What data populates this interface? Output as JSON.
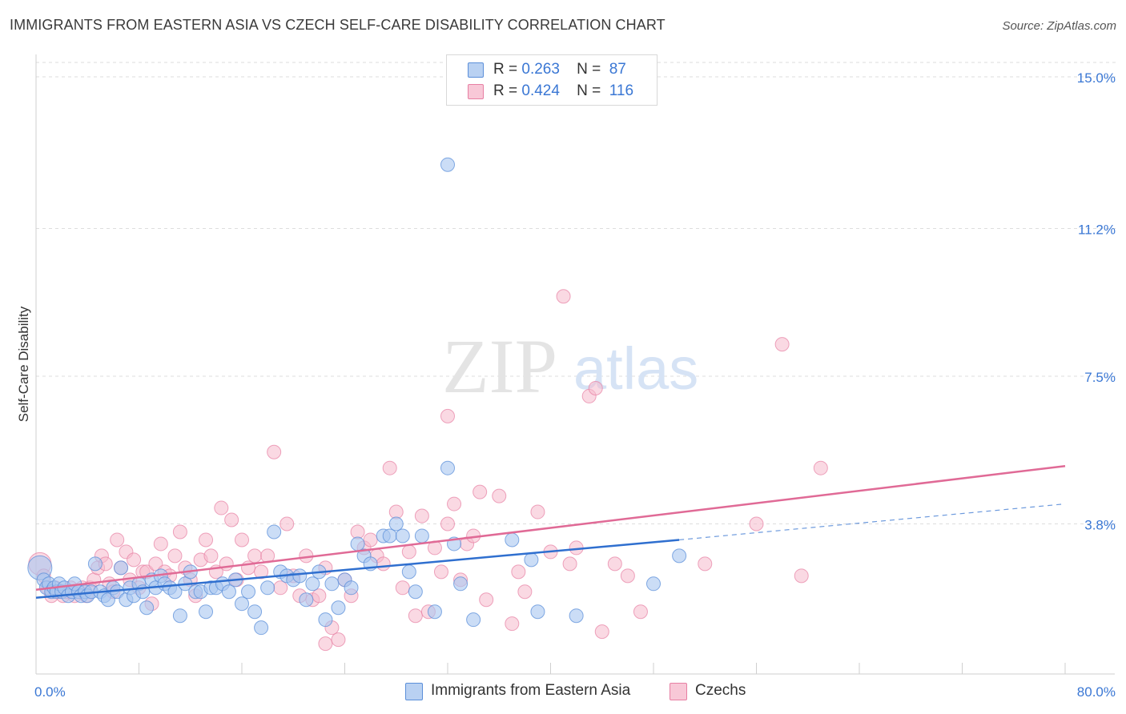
{
  "header": {
    "title": "IMMIGRANTS FROM EASTERN ASIA VS CZECH SELF-CARE DISABILITY CORRELATION CHART",
    "source": "Source: ZipAtlas.com"
  },
  "watermark": {
    "zip": "ZIP",
    "atlas": "atlas"
  },
  "legend": {
    "rows": [
      {
        "r_label": "R =",
        "r_value": "0.263",
        "n_label": "N =",
        "n_value": "87"
      },
      {
        "r_label": "R =",
        "r_value": "0.424",
        "n_label": "N =",
        "n_value": "116"
      }
    ]
  },
  "bottom_legend": {
    "series1": "Immigrants from Eastern Asia",
    "series2": "Czechs"
  },
  "colors": {
    "blue_fill": "#a9c6f0",
    "blue_stroke": "#5b8fd9",
    "blue_line": "#2f6fcf",
    "pink_fill": "#f5b9cc",
    "pink_stroke": "#e77fa3",
    "pink_line": "#e06a96",
    "axis_text": "#3a77d4",
    "grid": "#dddddd"
  },
  "chart_data": {
    "type": "scatter",
    "ylabel": "Self-Care Disability",
    "xlim": [
      0,
      80
    ],
    "ylim": [
      0,
      15
    ],
    "x_tick_labels": [
      "0.0%",
      "80.0%"
    ],
    "y_ticks": [
      3.8,
      7.5,
      11.2,
      15.0
    ],
    "y_tick_labels": [
      "3.8%",
      "7.5%",
      "11.2%",
      "15.0%"
    ],
    "grid": true,
    "series": [
      {
        "name": "Immigrants from Eastern Asia",
        "color": "#a9c6f0",
        "trend": {
          "x": [
            0,
            50
          ],
          "y": [
            1.95,
            3.4
          ],
          "dashed_to": [
            80,
            4.3
          ]
        },
        "points": [
          [
            0.3,
            2.7
          ],
          [
            0.6,
            2.4
          ],
          [
            0.8,
            2.2
          ],
          [
            1.0,
            2.3
          ],
          [
            1.2,
            2.1
          ],
          [
            1.4,
            2.2
          ],
          [
            1.6,
            2.1
          ],
          [
            1.8,
            2.3
          ],
          [
            2.0,
            2.1
          ],
          [
            2.2,
            2.2
          ],
          [
            2.5,
            2.0
          ],
          [
            2.8,
            2.1
          ],
          [
            3.0,
            2.3
          ],
          [
            3.3,
            2.1
          ],
          [
            3.5,
            2.0
          ],
          [
            3.8,
            2.1
          ],
          [
            4.0,
            2.0
          ],
          [
            4.3,
            2.1
          ],
          [
            4.6,
            2.8
          ],
          [
            5.0,
            2.1
          ],
          [
            5.3,
            2.0
          ],
          [
            5.6,
            1.9
          ],
          [
            6.0,
            2.2
          ],
          [
            6.3,
            2.1
          ],
          [
            6.6,
            2.7
          ],
          [
            7.0,
            1.9
          ],
          [
            7.3,
            2.2
          ],
          [
            7.6,
            2.0
          ],
          [
            8.0,
            2.3
          ],
          [
            8.3,
            2.1
          ],
          [
            8.6,
            1.7
          ],
          [
            9.0,
            2.4
          ],
          [
            9.3,
            2.2
          ],
          [
            9.7,
            2.5
          ],
          [
            10.0,
            2.3
          ],
          [
            10.4,
            2.2
          ],
          [
            10.8,
            2.1
          ],
          [
            11.2,
            1.5
          ],
          [
            11.6,
            2.3
          ],
          [
            12.0,
            2.6
          ],
          [
            12.4,
            2.1
          ],
          [
            12.8,
            2.1
          ],
          [
            13.2,
            1.6
          ],
          [
            13.6,
            2.2
          ],
          [
            14.0,
            2.2
          ],
          [
            14.5,
            2.3
          ],
          [
            15.0,
            2.1
          ],
          [
            15.5,
            2.4
          ],
          [
            16.0,
            1.8
          ],
          [
            16.5,
            2.1
          ],
          [
            17.0,
            1.6
          ],
          [
            17.5,
            1.2
          ],
          [
            18.0,
            2.2
          ],
          [
            18.5,
            3.6
          ],
          [
            19.0,
            2.6
          ],
          [
            19.5,
            2.5
          ],
          [
            20.0,
            2.4
          ],
          [
            20.5,
            2.5
          ],
          [
            21.0,
            1.9
          ],
          [
            21.5,
            2.3
          ],
          [
            22.0,
            2.6
          ],
          [
            22.5,
            1.4
          ],
          [
            23.0,
            2.3
          ],
          [
            23.5,
            1.7
          ],
          [
            24.0,
            2.4
          ],
          [
            24.5,
            2.2
          ],
          [
            25.0,
            3.3
          ],
          [
            25.5,
            3.0
          ],
          [
            26.0,
            2.8
          ],
          [
            27.0,
            3.5
          ],
          [
            27.5,
            3.5
          ],
          [
            28.0,
            3.8
          ],
          [
            28.5,
            3.5
          ],
          [
            29.0,
            2.6
          ],
          [
            29.5,
            2.1
          ],
          [
            30.0,
            3.5
          ],
          [
            31.0,
            1.6
          ],
          [
            32.0,
            12.8
          ],
          [
            32.0,
            5.2
          ],
          [
            32.5,
            3.3
          ],
          [
            33.0,
            2.3
          ],
          [
            34.0,
            1.4
          ],
          [
            37.0,
            3.4
          ],
          [
            38.5,
            2.9
          ],
          [
            39.0,
            1.6
          ],
          [
            42.0,
            1.5
          ],
          [
            48.0,
            2.3
          ],
          [
            50.0,
            3.0
          ]
        ]
      },
      {
        "name": "Czechs",
        "color": "#f5b9cc",
        "trend": {
          "x": [
            0,
            80
          ],
          "y": [
            2.15,
            5.25
          ]
        },
        "points": [
          [
            0.3,
            2.8
          ],
          [
            0.6,
            2.5
          ],
          [
            0.9,
            2.2
          ],
          [
            1.2,
            2.0
          ],
          [
            1.5,
            2.2
          ],
          [
            1.8,
            2.1
          ],
          [
            2.1,
            2.0
          ],
          [
            2.4,
            2.1
          ],
          [
            2.7,
            2.2
          ],
          [
            3.0,
            2.0
          ],
          [
            3.3,
            2.1
          ],
          [
            3.6,
            2.2
          ],
          [
            3.9,
            2.0
          ],
          [
            4.2,
            2.2
          ],
          [
            4.5,
            2.4
          ],
          [
            4.8,
            2.7
          ],
          [
            5.1,
            3.0
          ],
          [
            5.4,
            2.8
          ],
          [
            5.7,
            2.3
          ],
          [
            6.0,
            2.1
          ],
          [
            6.3,
            3.4
          ],
          [
            6.6,
            2.7
          ],
          [
            7.0,
            3.1
          ],
          [
            7.3,
            2.4
          ],
          [
            7.6,
            2.9
          ],
          [
            8.0,
            2.2
          ],
          [
            8.3,
            2.6
          ],
          [
            8.6,
            2.6
          ],
          [
            9.0,
            1.8
          ],
          [
            9.3,
            2.8
          ],
          [
            9.7,
            3.3
          ],
          [
            10.0,
            2.6
          ],
          [
            10.4,
            2.5
          ],
          [
            10.8,
            3.0
          ],
          [
            11.2,
            3.6
          ],
          [
            11.6,
            2.7
          ],
          [
            12.0,
            2.4
          ],
          [
            12.4,
            2.0
          ],
          [
            12.8,
            2.9
          ],
          [
            13.2,
            3.4
          ],
          [
            13.6,
            3.0
          ],
          [
            14.0,
            2.6
          ],
          [
            14.4,
            4.2
          ],
          [
            14.8,
            2.8
          ],
          [
            15.2,
            3.9
          ],
          [
            15.6,
            2.4
          ],
          [
            16.0,
            3.4
          ],
          [
            16.5,
            2.7
          ],
          [
            17.0,
            3.0
          ],
          [
            17.5,
            2.6
          ],
          [
            18.0,
            3.0
          ],
          [
            18.5,
            5.6
          ],
          [
            19.0,
            2.2
          ],
          [
            19.5,
            3.8
          ],
          [
            20.0,
            2.5
          ],
          [
            20.5,
            2.0
          ],
          [
            21.0,
            3.0
          ],
          [
            21.5,
            1.9
          ],
          [
            22.0,
            2.0
          ],
          [
            22.5,
            2.7
          ],
          [
            22.5,
            0.8
          ],
          [
            23.0,
            1.2
          ],
          [
            23.5,
            0.9
          ],
          [
            24.0,
            2.4
          ],
          [
            24.5,
            2.0
          ],
          [
            25.0,
            3.6
          ],
          [
            25.5,
            3.2
          ],
          [
            26.0,
            3.4
          ],
          [
            26.5,
            3.0
          ],
          [
            27.0,
            2.8
          ],
          [
            27.5,
            5.2
          ],
          [
            28.0,
            4.1
          ],
          [
            28.5,
            2.2
          ],
          [
            29.0,
            3.1
          ],
          [
            29.5,
            1.5
          ],
          [
            30.0,
            4.0
          ],
          [
            30.5,
            1.6
          ],
          [
            31.0,
            3.2
          ],
          [
            31.5,
            2.6
          ],
          [
            32.0,
            3.8
          ],
          [
            32.0,
            6.5
          ],
          [
            32.5,
            4.3
          ],
          [
            33.0,
            2.4
          ],
          [
            33.5,
            3.3
          ],
          [
            34.0,
            3.5
          ],
          [
            34.5,
            4.6
          ],
          [
            35.0,
            1.9
          ],
          [
            36.0,
            4.5
          ],
          [
            37.0,
            1.3
          ],
          [
            37.5,
            2.6
          ],
          [
            38.0,
            2.1
          ],
          [
            39.0,
            4.1
          ],
          [
            40.0,
            3.1
          ],
          [
            41.0,
            9.5
          ],
          [
            41.5,
            2.8
          ],
          [
            42.0,
            3.2
          ],
          [
            43.0,
            7.0
          ],
          [
            43.5,
            7.2
          ],
          [
            44.0,
            1.1
          ],
          [
            45.0,
            2.8
          ],
          [
            46.0,
            2.5
          ],
          [
            47.0,
            1.6
          ],
          [
            52.0,
            2.8
          ],
          [
            56.0,
            3.8
          ],
          [
            58.0,
            8.3
          ],
          [
            59.5,
            2.5
          ],
          [
            61.0,
            5.2
          ]
        ]
      }
    ]
  }
}
